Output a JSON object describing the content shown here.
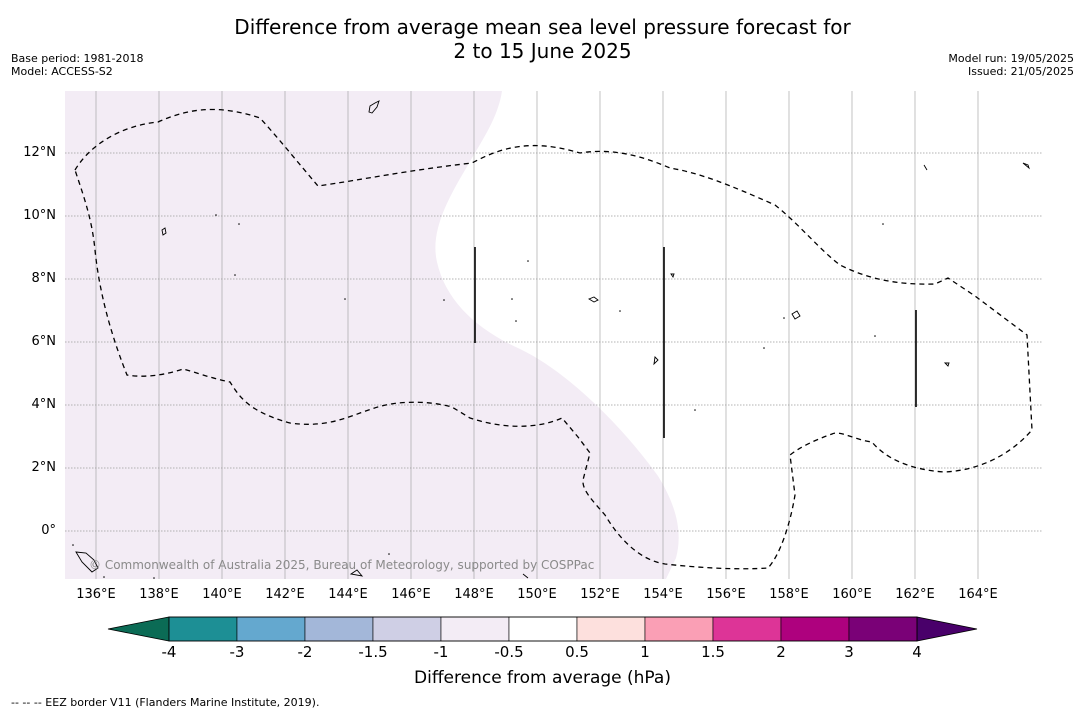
{
  "title": {
    "line1": "Difference from average mean sea level pressure forecast for",
    "line2": "2 to 15 June 2025"
  },
  "meta_left": {
    "base_period": "Base period: 1981-2018",
    "model": "Model: ACCESS-S2"
  },
  "meta_right": {
    "model_run": "Model run: 19/05/2025",
    "issued": "Issued: 21/05/2025"
  },
  "map": {
    "lat_labels": [
      "12°N",
      "10°N",
      "8°N",
      "6°N",
      "4°N",
      "2°N",
      "0°"
    ],
    "lon_labels": [
      "136°E",
      "138°E",
      "140°E",
      "142°E",
      "144°E",
      "146°E",
      "148°E",
      "150°E",
      "152°E",
      "154°E",
      "156°E",
      "158°E",
      "160°E",
      "162°E",
      "164°E"
    ],
    "copyright": "© Commonwealth of Australia 2025, Bureau of Meteorology, supported by COSPPac",
    "shaded_category": "-1 to -0.5",
    "shaded_color": "#f3ecf5"
  },
  "colorbar": {
    "title": "Difference from average (hPa)",
    "tick_labels": [
      "-4",
      "-3",
      "-2",
      "-1.5",
      "-1",
      "-0.5",
      "0.5",
      "1",
      "1.5",
      "2",
      "3",
      "4"
    ],
    "colors": [
      "#1d8f95",
      "#64a8cf",
      "#a3b7d9",
      "#cfcfe5",
      "#f3ecf5",
      "#ffffff",
      "#fde0dd",
      "#fa9fb5",
      "#dd3497",
      "#ae017e",
      "#7a0177"
    ],
    "low_extend_color": "#0b6b55",
    "high_extend_color": "#49006a"
  },
  "footnote": "-- -- -- EEZ border V11 (Flanders Marine Institute, 2019)."
}
